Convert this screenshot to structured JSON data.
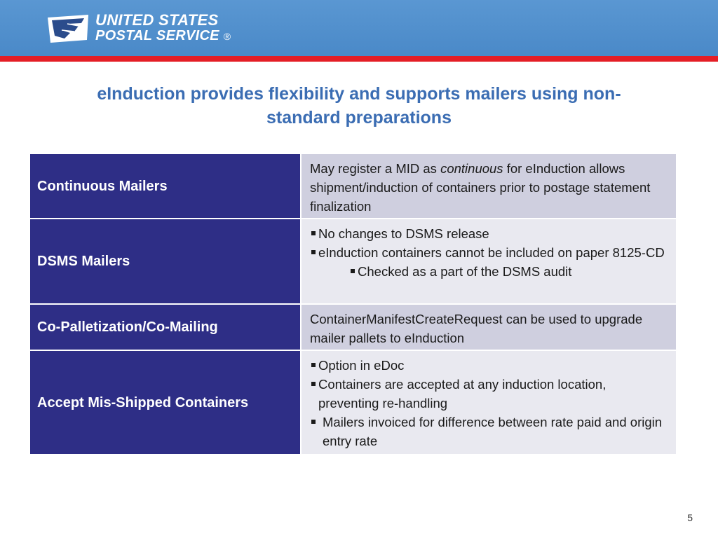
{
  "header": {
    "logo_line1": "UNITED STATES",
    "logo_line2": "POSTAL SERVICE",
    "logo_reg": "®",
    "band_color": "#4f8fcf",
    "rule_color": "#e41e26"
  },
  "title": {
    "line1": "eInduction provides flexibility and supports mailers using non-",
    "line2": "standard preparations"
  },
  "table": {
    "rows": [
      {
        "label": "Continuous Mailers",
        "desc_pre": "May register a MID as ",
        "desc_em": "continuous",
        "desc_post": " for eInduction allows shipment/induction of containers prior to postage statement finalization"
      },
      {
        "label": "DSMS Mailers",
        "bullets": [
          "No changes to DSMS release",
          "eInduction containers cannot be included on paper 8125-CD"
        ],
        "sub_bullet": "Checked as a part of the DSMS audit"
      },
      {
        "label": "Co-Palletization/Co-Mailing",
        "desc": "ContainerManifestCreateRequest can be used to upgrade mailer pallets to eInduction"
      },
      {
        "label": "Accept Mis-Shipped Containers",
        "bullets": [
          "Option in eDoc",
          "Containers are accepted at any induction location, preventing re-handling",
          "Mailers invoiced for difference between rate paid and origin entry rate"
        ]
      }
    ],
    "label_color": "#2e2e86"
  },
  "footer": {
    "page_number": "5"
  }
}
